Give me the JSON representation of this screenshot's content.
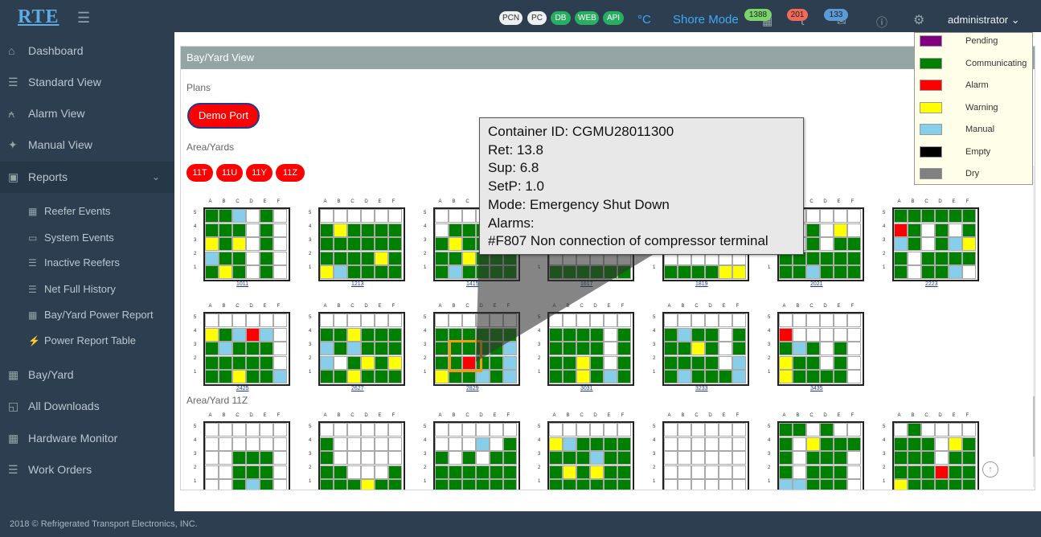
{
  "topbar": {
    "logo": "RTE",
    "status_pills": [
      "PCN",
      "PC",
      "DB",
      "WEB",
      "API"
    ],
    "unit": "°C",
    "mode": "Shore Mode",
    "badge_containers": "1388",
    "badge_alerts": "201",
    "badge_messages": "133",
    "user": "administrator"
  },
  "sidebar": {
    "items": [
      {
        "label": "Dashboard",
        "icon": "home-icon"
      },
      {
        "label": "Standard View",
        "icon": "list-icon"
      },
      {
        "label": "Alarm View",
        "icon": "bell-icon"
      },
      {
        "label": "Manual View",
        "icon": "pin-icon"
      },
      {
        "label": "Reports",
        "icon": "report-icon"
      }
    ],
    "sub_items": [
      {
        "label": "Reefer Events",
        "icon": "grid-icon"
      },
      {
        "label": "System Events",
        "icon": "monitor-icon"
      },
      {
        "label": "Inactive Reefers",
        "icon": "list-icon"
      },
      {
        "label": "Net Full History",
        "icon": "list-icon"
      },
      {
        "label": "Bay/Yard Power Report",
        "icon": "grid-icon"
      },
      {
        "label": "Power Report Table",
        "icon": "bolt-icon"
      }
    ],
    "items2": [
      {
        "label": "Bay/Yard",
        "icon": "grid-icon"
      },
      {
        "label": "All Downloads",
        "icon": "folder-icon"
      },
      {
        "label": "Hardware Monitor",
        "icon": "grid-icon"
      },
      {
        "label": "Work Orders",
        "icon": "stack-icon"
      }
    ]
  },
  "panel": {
    "title": "Bay/Yard View",
    "plans_label": "Plans",
    "plan_button": "Demo Port",
    "areas_label": "Area/Yards",
    "area_buttons": [
      "11T",
      "11U",
      "11Y",
      "11Z"
    ],
    "section_label": "Area/Yard 11Z"
  },
  "legend": [
    {
      "label": "Pending",
      "color": "#800080"
    },
    {
      "label": "Communicating",
      "color": "#008000"
    },
    {
      "label": "Alarm",
      "color": "#ff0000"
    },
    {
      "label": "Warning",
      "color": "#ffff00"
    },
    {
      "label": "Manual",
      "color": "#87ceeb"
    },
    {
      "label": "Empty",
      "color": "#000000"
    },
    {
      "label": "Dry",
      "color": "#808080"
    }
  ],
  "tooltip": {
    "line1": "Container ID:  CGMU28011300",
    "line2": "Ret:  13.8",
    "line3": "Sup: 6.8",
    "line4": "SetP: 1.0",
    "line5": "Mode: Emergency Shut Down",
    "line6": "Alarms:",
    "line7": "#F807 Non connection of compressor terminal"
  },
  "columns": [
    "A",
    "B",
    "C",
    "D",
    "E",
    "F"
  ],
  "rows": [
    "5",
    "4",
    "3",
    "2",
    "1"
  ],
  "bays": [
    {
      "label": "1011",
      "cells": [
        "GGBWGW",
        "GGGWGW",
        "YGYWGW",
        "BGGWGW",
        "GYGWGW"
      ]
    },
    {
      "label": "1213",
      "cells": [
        "WWWWWW",
        "GYGGGG",
        "GGGGGG",
        "GGGGYG",
        "YBGGGG"
      ]
    },
    {
      "label": "1415",
      "cells": [
        "WWWWWW",
        "WGGGGG",
        "GYGGGG",
        "GGYGGG",
        "GBGGGG"
      ]
    },
    {
      "label": "1617",
      "cells": [
        "WWWWWW",
        "WWWWWW",
        "WWWWWW",
        "WWWWWW",
        "GGGGGG"
      ]
    },
    {
      "label": "1819",
      "cells": [
        "WWWWWW",
        "WWWWWW",
        "WWWWWW",
        "WWWWWW",
        "GGGGYY"
      ]
    },
    {
      "label": "2021",
      "cells": [
        "WWWWWW",
        "WWGWYW",
        "WWGWGG",
        "GGGGGG",
        "GGBGGG"
      ]
    },
    {
      "label": "2223",
      "cells": [
        "GGGGGG",
        "RGWGWG",
        "BGWGBY",
        "GWGGGG",
        "GWGGBW"
      ]
    },
    {
      "label": "2425",
      "cells": [
        "WWWWWW",
        "YGBRBW",
        "GBGGGW",
        "GGGGGW",
        "GGYGGB"
      ]
    },
    {
      "label": "2627",
      "cells": [
        "WWWWWW",
        "GGYGGG",
        "BGBGGG",
        "BWGYGY",
        "GGYGGG"
      ]
    },
    {
      "label": "2829",
      "cells": [
        "WWWWWW",
        "GGGGGG",
        "GGGGGB",
        "GGRGGB",
        "YGGBGB"
      ]
    },
    {
      "label": "3031",
      "cells": [
        "WWWWWW",
        "GGGGWG",
        "GGGGWG",
        "GGYGWG",
        "GGYGBG"
      ]
    },
    {
      "label": "3233",
      "cells": [
        "WWWWWW",
        "GBGGWG",
        "GGYGWG",
        "GGGGWB",
        "GBGGGB"
      ]
    },
    {
      "label": "3435",
      "cells": [
        "WWWWWW",
        "RWWWWW",
        "GBGWGW",
        "YGGWGW",
        "YGGGGW"
      ]
    },
    {
      "label": "",
      "cells": [
        "WWWWWW",
        "WWWWWW",
        "WWGGGW",
        "WWGGGW",
        "WWGBGW"
      ]
    },
    {
      "label": "",
      "cells": [
        "WWWWWW",
        "GWWWWW",
        "GWWWWW",
        "GGWWWG",
        "GGGYGG"
      ]
    },
    {
      "label": "",
      "cells": [
        "WWWWWW",
        "WWWBWG",
        "GWGWGG",
        "GGGGGG",
        "GGGGGG"
      ]
    },
    {
      "label": "",
      "cells": [
        "WWWWWW",
        "YBGGGG",
        "GGGBGG",
        "GYGYGG",
        "GGGGGG"
      ]
    },
    {
      "label": "",
      "cells": [
        "WWWWWW",
        "WWWWWW",
        "WWWWWW",
        "WWWWWW",
        "WWWWWW"
      ]
    },
    {
      "label": "",
      "cells": [
        "GGWGWW",
        "GWYGGG",
        "GWGGGW",
        "GWGGGW",
        "BBGGGW"
      ]
    },
    {
      "label": "",
      "cells": [
        "WGWWWW",
        "GGGWYG",
        "GGGWGG",
        "GGGRGG",
        "YGGGGG"
      ]
    }
  ],
  "footer": "2018 © Refrigerated Transport Electronics, INC."
}
